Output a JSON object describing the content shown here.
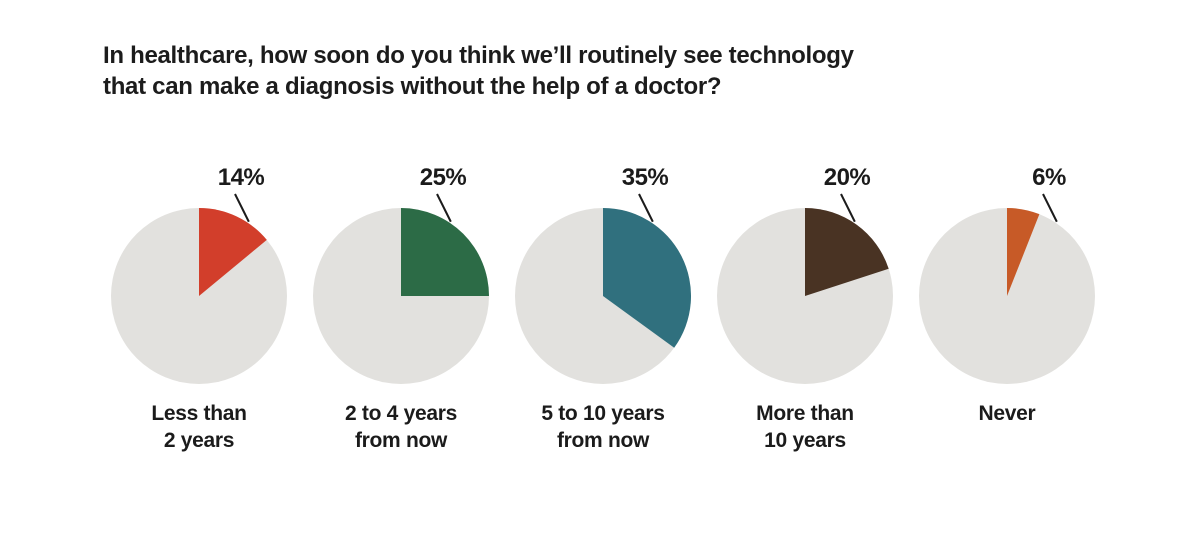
{
  "header": {
    "title_line1": "In healthcare, how soon do you think we’ll routinely see technology",
    "title_line2": "that can make a diagnosis without the help of a doctor?"
  },
  "chart_data": {
    "type": "pie",
    "layout": "small-multiples-row",
    "title": "In healthcare, how soon do you think we’ll routinely see technology that can make a diagnosis without the help of a doctor?",
    "unit": "percent",
    "start_angle_deg": 0,
    "direction": "clockwise",
    "legend_position": "none",
    "remainder_color": "#E2E1DE",
    "text_color": "#1b1b1b",
    "categories": [
      "Less than 2 years",
      "2 to 4 years from now",
      "5 to 10 years from now",
      "More than 10 years",
      "Never"
    ],
    "values": [
      14,
      25,
      35,
      20,
      6
    ],
    "pies": [
      {
        "category_lines": [
          "Less than",
          "2 years"
        ],
        "value": 14,
        "label": "14%",
        "color": "#D23E2B"
      },
      {
        "category_lines": [
          "2 to 4 years",
          "from now"
        ],
        "value": 25,
        "label": "25%",
        "color": "#2C6B46"
      },
      {
        "category_lines": [
          "5 to 10 years",
          "from now"
        ],
        "value": 35,
        "label": "35%",
        "color": "#30707E"
      },
      {
        "category_lines": [
          "More than",
          "10 years"
        ],
        "value": 20,
        "label": "20%",
        "color": "#493323"
      },
      {
        "category_lines": [
          "Never"
        ],
        "value": 6,
        "label": "6%",
        "color": "#C75A27"
      }
    ]
  }
}
